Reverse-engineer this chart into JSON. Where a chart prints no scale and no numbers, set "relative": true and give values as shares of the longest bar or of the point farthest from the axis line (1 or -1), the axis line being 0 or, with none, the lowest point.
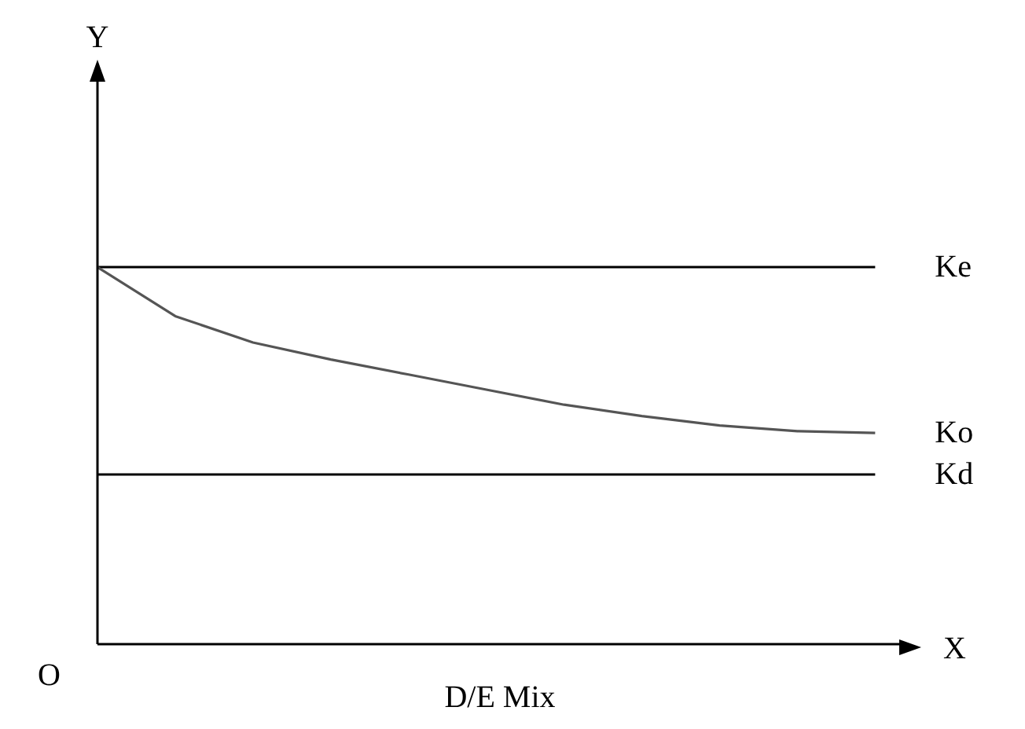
{
  "chart_data": {
    "type": "line",
    "relative": true,
    "xlabel": "D/E Mix",
    "annotations": [
      "Y",
      "X",
      "O"
    ],
    "marker": "none",
    "grid": false,
    "legend": false,
    "categories": [
      null,
      null,
      null,
      null,
      null,
      null,
      null,
      null,
      null,
      null,
      null
    ],
    "series": [
      {
        "name": "Ke",
        "color": "#000000",
        "values": [
          1,
          1,
          1,
          1,
          1,
          1,
          1,
          1,
          1,
          1,
          1
        ]
      },
      {
        "name": "Ko",
        "color": "#555555",
        "values": [
          1,
          0.87,
          0.8,
          0.755,
          0.715,
          0.675,
          0.635,
          0.605,
          0.58,
          0.565,
          0.56
        ]
      },
      {
        "name": "Kd",
        "color": "#000000",
        "values": [
          0.45,
          0.45,
          0.45,
          0.45,
          0.45,
          0.45,
          0.45,
          0.45,
          0.45,
          0.45,
          0.45
        ]
      }
    ]
  }
}
